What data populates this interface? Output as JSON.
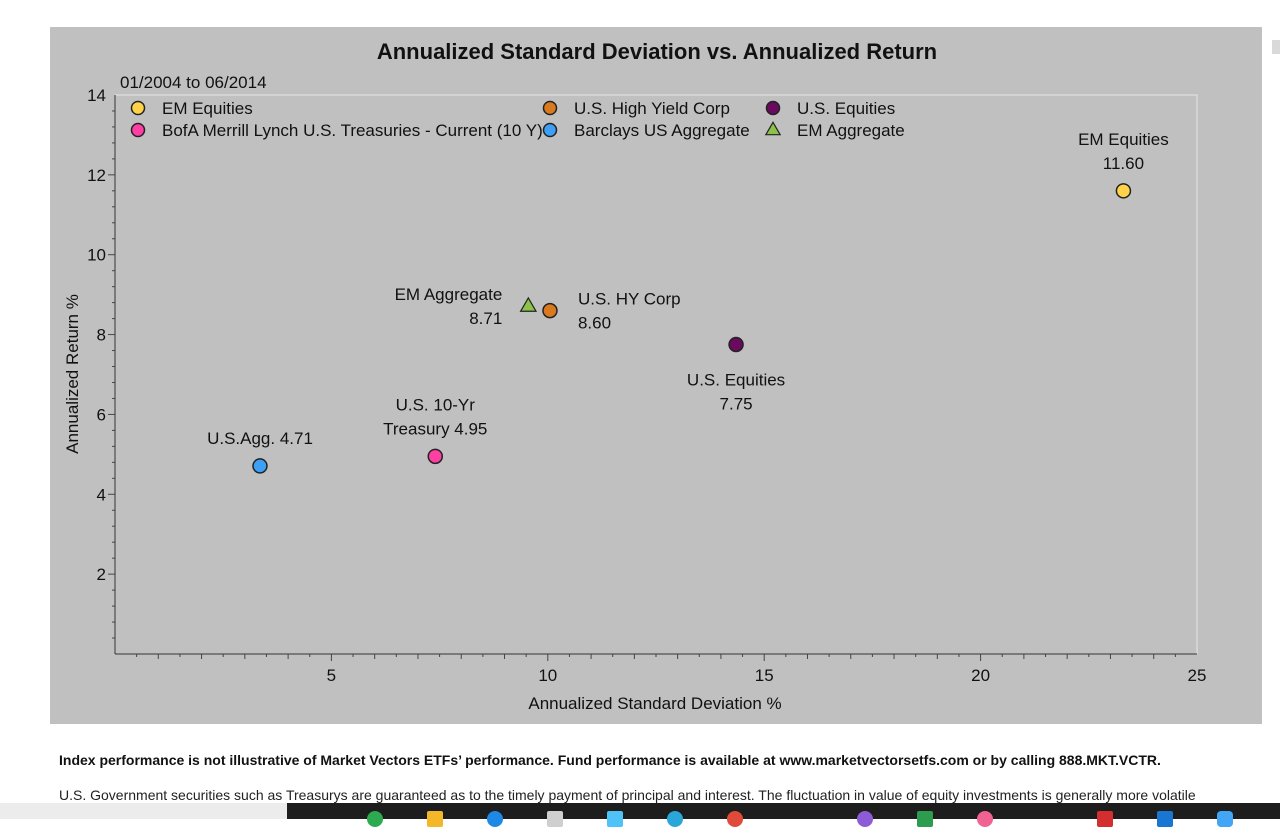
{
  "chart_data": {
    "type": "scatter",
    "title": "Annualized Standard Deviation vs. Annualized Return",
    "subtitle": "01/2004 to 06/2014",
    "xlabel": "Annualized Standard Deviation %",
    "ylabel": "Annualized Return %",
    "xlim": [
      0,
      25
    ],
    "ylim": [
      0,
      14
    ],
    "xticks": [
      5,
      10,
      15,
      20,
      25
    ],
    "yticks": [
      2,
      4,
      6,
      8,
      10,
      12,
      14
    ],
    "legend_position": "top",
    "series": [
      {
        "name": "EM Equities",
        "marker": "circle",
        "color": "#ffd24a",
        "points": [
          {
            "x": 23.3,
            "y": 11.6
          }
        ],
        "label_lines": [
          "EM Equities",
          "11.60"
        ]
      },
      {
        "name": "U.S. High Yield Corp",
        "marker": "circle",
        "color": "#d97a1f",
        "points": [
          {
            "x": 10.05,
            "y": 8.6
          }
        ],
        "label_lines": [
          "U.S. HY Corp",
          "8.60"
        ]
      },
      {
        "name": "U.S. Equities",
        "marker": "circle",
        "color": "#6a0a5e",
        "points": [
          {
            "x": 14.35,
            "y": 7.75
          }
        ],
        "label_lines": [
          "U.S. Equities",
          "7.75"
        ]
      },
      {
        "name": "BofA Merrill Lynch U.S. Treasuries - Current (10 Y)",
        "marker": "circle",
        "color": "#ff3fa4",
        "points": [
          {
            "x": 7.4,
            "y": 4.95
          }
        ],
        "label_lines": [
          "U.S. 10-Yr",
          "Treasury 4.95"
        ]
      },
      {
        "name": "Barclays US Aggregate",
        "marker": "circle",
        "color": "#3ea0f5",
        "points": [
          {
            "x": 3.35,
            "y": 4.71
          }
        ],
        "label_lines": [
          "U.S.Agg. 4.71"
        ]
      },
      {
        "name": "EM Aggregate",
        "marker": "triangle",
        "color": "#8dc24a",
        "points": [
          {
            "x": 9.55,
            "y": 8.71
          }
        ],
        "label_lines": [
          "EM Aggregate",
          "8.71"
        ]
      }
    ],
    "legend": [
      "EM Equities",
      "BofA Merrill Lynch U.S. Treasuries - Current (10 Y)",
      "U.S. High Yield Corp",
      "Barclays US Aggregate",
      "U.S. Equities",
      "EM Aggregate"
    ]
  },
  "footer": {
    "disclaimer": "Index performance is not illustrative of Market Vectors ETFs’ performance. Fund performance is available at www.marketvectorsetfs.com or by calling 888.MKT.VCTR.",
    "note": "U.S. Government securities such as Treasurys are guaranteed as to the timely payment of principal and interest. The fluctuation in value of equity investments is generally more volatile"
  },
  "colors": {
    "panel_background": "#c0c0c0",
    "plot_background": "#c0c0c0",
    "taskbar_dark": "#1d1d1d"
  }
}
